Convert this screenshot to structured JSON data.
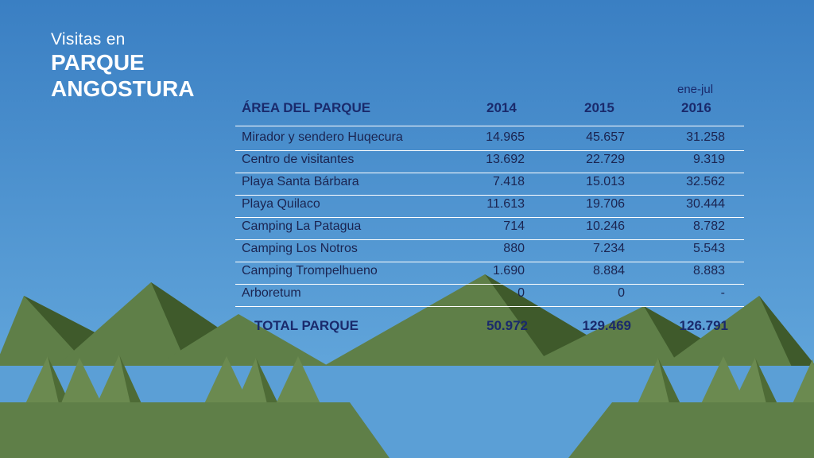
{
  "header": {
    "subtitle": "Visitas en",
    "title_line1": "PARQUE",
    "title_line2": "ANGOSTURA"
  },
  "table": {
    "columns": [
      "ÁREA DEL PARQUE",
      "2014",
      "2015",
      "2016"
    ],
    "col_2016_note": "ene-jul",
    "rows": [
      {
        "area": "Mirador y sendero Huqecura",
        "y2014": "14.965",
        "y2015": "45.657",
        "y2016": "31.258"
      },
      {
        "area": "Centro de visitantes",
        "y2014": "13.692",
        "y2015": "22.729",
        "y2016": "9.319"
      },
      {
        "area": "Playa Santa Bárbara",
        "y2014": "7.418",
        "y2015": "15.013",
        "y2016": "32.562"
      },
      {
        "area": "Playa Quilaco",
        "y2014": "11.613",
        "y2015": "19.706",
        "y2016": "30.444"
      },
      {
        "area": "Camping La Patagua",
        "y2014": "714",
        "y2015": "10.246",
        "y2016": "8.782"
      },
      {
        "area": "Camping Los Notros",
        "y2014": "880",
        "y2015": "7.234",
        "y2016": "5.543"
      },
      {
        "area": "Camping Trompelhueno",
        "y2014": "1.690",
        "y2015": "8.884",
        "y2016": "8.883"
      },
      {
        "area": "Arboretum",
        "y2014": "0",
        "y2015": "0",
        "y2016": "-"
      }
    ],
    "total": {
      "label": "TOTAL PARQUE",
      "y2014": "50.972",
      "y2015": "129.469",
      "y2016": "126.791"
    }
  },
  "chart_data": {
    "type": "table",
    "columns": [
      "ÁREA DEL PARQUE",
      "2014",
      "2015",
      "2016"
    ],
    "rows": [
      [
        "Mirador y sendero Huqecura",
        14965,
        45657,
        31258
      ],
      [
        "Centro de visitantes",
        13692,
        22729,
        9319
      ],
      [
        "Playa Santa Bárbara",
        7418,
        15013,
        32562
      ],
      [
        "Playa Quilaco",
        11613,
        19706,
        30444
      ],
      [
        "Camping La Patagua",
        714,
        10246,
        8782
      ],
      [
        "Camping Los Notros",
        880,
        7234,
        5543
      ],
      [
        "Camping Trompelhueno",
        1690,
        8884,
        8883
      ],
      [
        "Arboretum",
        0,
        0,
        null
      ]
    ],
    "total": [
      "TOTAL PARQUE",
      50972,
      129469,
      126791
    ]
  },
  "colors": {
    "sky_top": "#3a7fc3",
    "sky_bottom": "#6aaee0",
    "lake": "#5b9fd6",
    "mountain_light": "#5f7f48",
    "mountain_dark": "#3f5a2b",
    "header_text": "#1a2a6c"
  }
}
